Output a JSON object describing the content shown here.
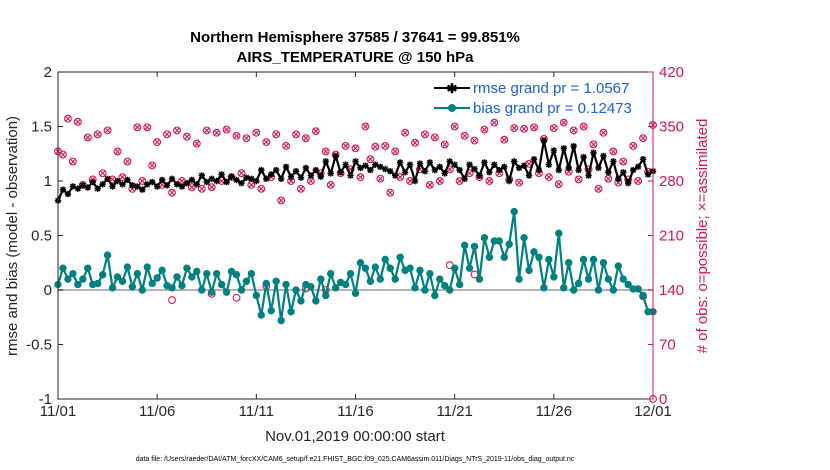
{
  "chart_data": {
    "type": "line",
    "title": "Northern Hemisphere 37585 / 37641 = 99.851%",
    "subtitle": "AIRS_TEMPERATURE @ 150 hPa",
    "xlabel": "Nov.01,2019 00:00:00 start",
    "ylabel": "rmse and bias (model - observation)",
    "y2label": "# of obs: o=possible; ×=assimilated",
    "xlim": [
      0,
      30
    ],
    "ylim": [
      -1,
      2
    ],
    "y2lim": [
      0,
      420
    ],
    "x_ticks": [
      "11/01",
      "11/06",
      "11/11",
      "11/16",
      "11/21",
      "11/26",
      "12/01"
    ],
    "y_ticks": [
      "-1",
      "-0.5",
      "0",
      "0.5",
      "1",
      "1.5",
      "2"
    ],
    "y2_ticks": [
      "0",
      "70",
      "140",
      "210",
      "280",
      "350",
      "420"
    ],
    "legend_position": "top-right",
    "footer": "data file: /Users/raeder/DAI/ATM_forcXX/CAM6_setup/f.e21.FHIST_BGC.f09_025.CAM6assim.011/Diags_NTrS_2019-11/obs_diag_output.nc",
    "colors": {
      "rmse": "#000000",
      "bias": "#008080",
      "counts": "#d6145a",
      "zero_line": "#b4b4b4"
    },
    "series": [
      {
        "name": "rmse",
        "legend": "rmse grand pr = 1.0567",
        "axis": "left",
        "x": [
          0.0,
          0.25,
          0.5,
          0.75,
          1.0,
          1.25,
          1.5,
          1.75,
          2.0,
          2.25,
          2.5,
          2.75,
          3.0,
          3.25,
          3.5,
          3.75,
          4.0,
          4.25,
          4.5,
          4.75,
          5.0,
          5.25,
          5.5,
          5.75,
          6.0,
          6.25,
          6.5,
          6.75,
          7.0,
          7.25,
          7.5,
          7.75,
          8.0,
          8.25,
          8.5,
          8.75,
          9.0,
          9.25,
          9.5,
          9.75,
          10.0,
          10.25,
          10.5,
          10.75,
          11.0,
          11.25,
          11.5,
          11.75,
          12.0,
          12.25,
          12.5,
          12.75,
          13.0,
          13.25,
          13.5,
          13.75,
          14.0,
          14.25,
          14.5,
          14.75,
          15.0,
          15.25,
          15.5,
          15.75,
          16.0,
          16.25,
          16.5,
          16.75,
          17.0,
          17.25,
          17.5,
          17.75,
          18.0,
          18.25,
          18.5,
          18.75,
          19.0,
          19.25,
          19.5,
          19.75,
          20.0,
          20.25,
          20.5,
          20.75,
          21.0,
          21.25,
          21.5,
          21.75,
          22.0,
          22.25,
          22.5,
          22.75,
          23.0,
          23.25,
          23.5,
          23.75,
          24.0,
          24.25,
          24.5,
          24.75,
          25.0,
          25.25,
          25.5,
          25.75,
          26.0,
          26.25,
          26.5,
          26.75,
          27.0,
          27.25,
          27.5,
          27.75,
          28.0,
          28.25,
          28.5,
          28.75,
          29.0,
          29.25,
          29.5,
          29.75,
          30.0
        ],
        "values": [
          0.82,
          0.92,
          0.88,
          0.95,
          0.93,
          0.96,
          0.94,
          0.99,
          0.93,
          0.97,
          1.02,
          0.95,
          1.0,
          0.97,
          1.01,
          0.96,
          0.95,
          0.92,
          0.97,
          0.99,
          0.95,
          1.01,
          0.96,
          1.02,
          0.97,
          0.95,
          0.98,
          1.01,
          0.97,
          1.05,
          0.99,
          1.02,
          1.0,
          1.06,
          0.99,
          1.04,
          1.01,
          0.98,
          1.03,
          1.02,
          1.0,
          1.1,
          1.02,
          1.06,
          1.1,
          1.02,
          1.13,
          1.04,
          1.09,
          1.03,
          1.12,
          1.05,
          1.1,
          1.04,
          1.18,
          1.07,
          1.23,
          1.08,
          1.15,
          1.05,
          1.18,
          1.12,
          1.14,
          1.1,
          1.15,
          1.13,
          1.11,
          1.09,
          1.05,
          1.17,
          1.08,
          1.15,
          1.0,
          1.16,
          1.09,
          1.17,
          1.1,
          1.13,
          1.07,
          1.18,
          1.15,
          1.1,
          1.02,
          1.15,
          1.11,
          1.05,
          1.17,
          1.08,
          1.15,
          1.1,
          1.13,
          1.0,
          1.18,
          1.12,
          1.14,
          1.05,
          1.2,
          1.1,
          1.37,
          1.15,
          1.28,
          1.1,
          1.3,
          1.12,
          1.32,
          1.1,
          1.22,
          1.05,
          1.26,
          1.12,
          1.23,
          1.08,
          1.18,
          1.02,
          1.08,
          0.98,
          1.1,
          1.13,
          1.2,
          1.06,
          1.09
        ],
        "label_points": [
          14,
          14.5,
          15,
          15.5,
          16,
          16.5,
          17,
          17.5,
          18,
          18.5
        ]
      },
      {
        "name": "bias",
        "legend": "bias grand pr = 0.12473",
        "axis": "left",
        "x": [
          0.0,
          0.25,
          0.5,
          0.75,
          1.0,
          1.25,
          1.5,
          1.75,
          2.0,
          2.25,
          2.5,
          2.75,
          3.0,
          3.25,
          3.5,
          3.75,
          4.0,
          4.25,
          4.5,
          4.75,
          5.0,
          5.25,
          5.5,
          5.75,
          6.0,
          6.25,
          6.5,
          6.75,
          7.0,
          7.25,
          7.5,
          7.75,
          8.0,
          8.25,
          8.5,
          8.75,
          9.0,
          9.25,
          9.5,
          9.75,
          10.0,
          10.25,
          10.5,
          10.75,
          11.0,
          11.25,
          11.5,
          11.75,
          12.0,
          12.25,
          12.5,
          12.75,
          13.0,
          13.25,
          13.5,
          13.75,
          14.0,
          14.25,
          14.5,
          14.75,
          15.0,
          15.25,
          15.5,
          15.75,
          16.0,
          16.25,
          16.5,
          16.75,
          17.0,
          17.25,
          17.5,
          17.75,
          18.0,
          18.25,
          18.5,
          18.75,
          19.0,
          19.25,
          19.5,
          19.75,
          20.0,
          20.25,
          20.5,
          20.75,
          21.0,
          21.25,
          21.5,
          21.75,
          22.0,
          22.25,
          22.5,
          22.75,
          23.0,
          23.25,
          23.5,
          23.75,
          24.0,
          24.25,
          24.5,
          24.75,
          25.0,
          25.25,
          25.5,
          25.75,
          26.0,
          26.25,
          26.5,
          26.75,
          27.0,
          27.25,
          27.5,
          27.75,
          28.0,
          28.25,
          28.5,
          28.75,
          29.0,
          29.25,
          29.5,
          29.75,
          30.0
        ],
        "values": [
          0.05,
          0.2,
          0.1,
          0.15,
          0.05,
          0.1,
          0.2,
          0.05,
          0.06,
          0.14,
          0.32,
          0.02,
          0.12,
          0.08,
          0.21,
          0.03,
          0.15,
          0.0,
          0.21,
          0.06,
          0.11,
          0.18,
          0.04,
          0.02,
          0.12,
          0.04,
          0.2,
          0.12,
          0.17,
          0.0,
          0.15,
          -0.02,
          0.15,
          0.05,
          -0.02,
          0.17,
          0.14,
          0.0,
          0.08,
          0.15,
          -0.05,
          -0.23,
          0.06,
          -0.19,
          0.08,
          -0.28,
          0.05,
          -0.2,
          0.0,
          -0.1,
          0.05,
          0.03,
          -0.1,
          0.1,
          -0.05,
          0.15,
          0.02,
          0.07,
          0.05,
          0.15,
          -0.03,
          0.25,
          0.2,
          0.08,
          0.21,
          0.1,
          0.28,
          0.2,
          0.1,
          0.3,
          0.18,
          0.2,
          0.02,
          0.18,
          0.0,
          0.15,
          -0.05,
          0.1,
          0.04,
          0.0,
          0.2,
          0.05,
          0.41,
          0.2,
          0.4,
          0.1,
          0.48,
          0.3,
          0.45,
          0.45,
          0.3,
          0.42,
          0.72,
          0.1,
          0.48,
          0.18,
          0.35,
          0.3,
          0.02,
          0.28,
          0.12,
          0.52,
          0.02,
          0.25,
          0.0,
          0.06,
          0.28,
          0.1,
          0.28,
          0.0,
          0.25,
          0.1,
          0.0,
          0.22,
          0.1,
          0.05,
          0.01,
          0.01,
          -0.05,
          -0.2,
          -0.2
        ]
      },
      {
        "name": "obs_possible",
        "axis": "right",
        "marker": "o",
        "x": [
          0.0,
          0.25,
          0.5,
          0.75,
          1.0,
          1.25,
          1.5,
          1.75,
          2.0,
          2.25,
          2.5,
          2.75,
          3.0,
          3.25,
          3.5,
          3.75,
          4.0,
          4.25,
          4.5,
          4.75,
          5.0,
          5.25,
          5.5,
          5.75,
          6.0,
          6.25,
          6.5,
          6.75,
          7.0,
          7.25,
          7.5,
          7.75,
          8.0,
          8.25,
          8.5,
          8.75,
          9.0,
          9.25,
          9.5,
          9.75,
          10.0,
          10.25,
          10.5,
          10.75,
          11.0,
          11.25,
          11.5,
          11.75,
          12.0,
          12.25,
          12.5,
          12.75,
          13.0,
          13.25,
          13.5,
          13.75,
          14.0,
          14.25,
          14.5,
          14.75,
          15.0,
          15.25,
          15.5,
          15.75,
          16.0,
          16.25,
          16.5,
          16.75,
          17.0,
          17.25,
          17.5,
          17.75,
          18.0,
          18.25,
          18.5,
          18.75,
          19.0,
          19.25,
          19.5,
          19.75,
          20.0,
          20.25,
          20.5,
          20.75,
          21.0,
          21.25,
          21.5,
          21.75,
          22.0,
          22.25,
          22.5,
          22.75,
          23.0,
          23.25,
          23.5,
          23.75,
          24.0,
          24.25,
          24.5,
          24.75,
          25.0,
          25.25,
          25.5,
          25.75,
          26.0,
          26.25,
          26.5,
          26.75,
          27.0,
          27.25,
          27.5,
          27.75,
          28.0,
          28.25,
          28.5,
          28.75,
          29.0,
          29.25,
          29.5,
          29.75,
          30.0
        ],
        "values": [
          318,
          314,
          360,
          305,
          356,
          275,
          336,
          282,
          340,
          290,
          345,
          282,
          318,
          285,
          305,
          270,
          349,
          280,
          349,
          300,
          330,
          275,
          340,
          265,
          345,
          280,
          337,
          272,
          328,
          270,
          345,
          272,
          342,
          280,
          346,
          285,
          338,
          290,
          335,
          275,
          342,
          270,
          330,
          285,
          340,
          255,
          325,
          280,
          340,
          270,
          335,
          280,
          344,
          290,
          318,
          275,
          314,
          290,
          325,
          295,
          322,
          285,
          350,
          308,
          324,
          283,
          325,
          265,
          318,
          285,
          342,
          280,
          329,
          295,
          340,
          275,
          336,
          280,
          327,
          295,
          350,
          280,
          338,
          290,
          332,
          285,
          346,
          280,
          355,
          290,
          333,
          282,
          348,
          278,
          347,
          302,
          349,
          290,
          334,
          285,
          348,
          276,
          355,
          292,
          345,
          282,
          350,
          295,
          327,
          270,
          342,
          283,
          318,
          278,
          305,
          282,
          325,
          280,
          335,
          292,
          352
        ]
      },
      {
        "name": "obs_assimilated",
        "axis": "right",
        "marker": "x",
        "x": [
          0.0,
          0.25,
          0.5,
          0.75,
          1.0,
          1.25,
          1.5,
          1.75,
          2.0,
          2.25,
          2.5,
          2.75,
          3.0,
          3.25,
          3.5,
          3.75,
          4.0,
          4.25,
          4.5,
          4.75,
          5.0,
          5.25,
          5.5,
          5.75,
          6.0,
          6.25,
          6.5,
          6.75,
          7.0,
          7.25,
          7.5,
          7.75,
          8.0,
          8.25,
          8.5,
          8.75,
          9.0,
          9.25,
          9.5,
          9.75,
          10.0,
          10.25,
          10.5,
          10.75,
          11.0,
          11.25,
          11.5,
          11.75,
          12.0,
          12.25,
          12.5,
          12.75,
          13.0,
          13.25,
          13.5,
          13.75,
          14.0,
          14.25,
          14.5,
          14.75,
          15.0,
          15.25,
          15.5,
          15.75,
          16.0,
          16.25,
          16.5,
          16.75,
          17.0,
          17.25,
          17.5,
          17.75,
          18.0,
          18.25,
          18.5,
          18.75,
          19.0,
          19.25,
          19.5,
          19.75,
          20.0,
          20.25,
          20.5,
          20.75,
          21.0,
          21.25,
          21.5,
          21.75,
          22.0,
          22.25,
          22.5,
          22.75,
          23.0,
          23.25,
          23.5,
          23.75,
          24.0,
          24.25,
          24.5,
          24.75,
          25.0,
          25.25,
          25.5,
          25.75,
          26.0,
          26.25,
          26.5,
          26.75,
          27.0,
          27.25,
          27.5,
          27.75,
          28.0,
          28.25,
          28.5,
          28.75,
          29.0,
          29.25,
          29.5,
          29.75,
          30.0
        ],
        "values": [
          318,
          314,
          360,
          305,
          356,
          275,
          336,
          282,
          340,
          290,
          345,
          282,
          318,
          285,
          305,
          270,
          349,
          280,
          349,
          300,
          330,
          275,
          340,
          265,
          345,
          280,
          337,
          272,
          328,
          270,
          345,
          272,
          342,
          280,
          346,
          285,
          338,
          290,
          335,
          275,
          342,
          270,
          330,
          285,
          340,
          255,
          325,
          280,
          340,
          270,
          335,
          280,
          344,
          290,
          318,
          275,
          314,
          290,
          325,
          295,
          322,
          285,
          350,
          308,
          324,
          283,
          325,
          265,
          318,
          285,
          342,
          280,
          329,
          295,
          340,
          275,
          336,
          280,
          327,
          295,
          350,
          280,
          338,
          290,
          332,
          285,
          346,
          280,
          355,
          290,
          333,
          282,
          348,
          278,
          347,
          302,
          349,
          290,
          334,
          285,
          348,
          276,
          355,
          292,
          345,
          282,
          350,
          295,
          327,
          270,
          342,
          283,
          318,
          278,
          305,
          282,
          325,
          280,
          335,
          292,
          352
        ]
      },
      {
        "name": "obs_possible_extra",
        "axis": "right",
        "marker": "o",
        "x": [
          5.75,
          7.75,
          9.0,
          10.5,
          12.5,
          13.5,
          19.75,
          21.0,
          29.5,
          30.0
        ],
        "values": [
          127,
          135,
          130,
          145,
          142,
          140,
          172,
          160,
          132,
          0
        ]
      }
    ]
  }
}
